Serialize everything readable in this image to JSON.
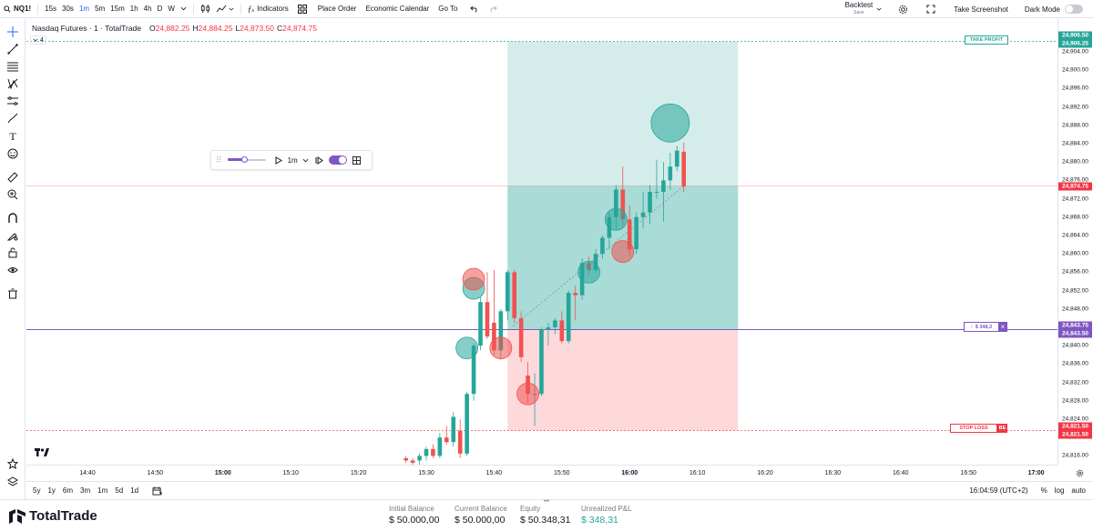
{
  "topbar": {
    "symbol": "NQ1!",
    "timeframes": [
      "15s",
      "30s",
      "1m",
      "5m",
      "15m",
      "1h",
      "4h",
      "D",
      "W"
    ],
    "active_timeframe": "1m",
    "indicators_label": "Indicators",
    "place_order_label": "Place Order",
    "economic_calendar_label": "Economic Calendar",
    "goto_label": "Go To",
    "backtest_label": "Backtest",
    "backtest_sub": "Save",
    "screenshot_label": "Take Screenshot",
    "dark_mode_label": "Dark Mode"
  },
  "legend": {
    "title": "Nasdaq Futures · 1 · TotalTrade",
    "o_label": "O",
    "o_value": "24,882.25",
    "h_label": "H",
    "h_value": "24,884.25",
    "l_label": "L",
    "l_value": "24,873.50",
    "c_label": "C",
    "c_value": "24,874.75",
    "indicator_count": "4"
  },
  "replay": {
    "speed": "1m"
  },
  "price_axis": {
    "labels": [
      "24,904.00",
      "24,900.00",
      "24,896.00",
      "24,892.00",
      "24,888.00",
      "24,884.00",
      "24,880.00",
      "24,876.00",
      "24,872.00",
      "24,868.00",
      "24,864.00",
      "24,860.00",
      "24,856.00",
      "24,852.00",
      "24,848.00",
      "24,844.00",
      "24,840.00",
      "24,836.00",
      "24,832.00",
      "24,828.00",
      "24,824.00",
      "24,820.00",
      "24,816.00"
    ],
    "tp_top": "24,906.50",
    "tp_bottom": "24,906.25",
    "last_price": "24,874.75",
    "entry_top": "24,843.75",
    "entry_bottom": "24,843.50",
    "sl_top": "24,821.50",
    "sl_bottom": "24,821.50"
  },
  "chart_tags": {
    "take_profit": "TAKE PROFIT",
    "position_value": "$ 348,3",
    "stop_loss": "STOP LOSS",
    "be": "BE"
  },
  "time_axis": {
    "labels": [
      "14:40",
      "14:50",
      "15:00",
      "15:10",
      "15:20",
      "15:30",
      "15:40",
      "15:50",
      "16:00",
      "16:10",
      "16:20",
      "16:30",
      "16:40",
      "16:50",
      "17:00"
    ],
    "bold": [
      "15:00",
      "16:00",
      "17:00"
    ]
  },
  "bottombar": {
    "ranges": [
      "5y",
      "1y",
      "6m",
      "3m",
      "1m",
      "5d",
      "1d"
    ],
    "clock": "16:04:59 (UTC+2)",
    "percent": "%",
    "log": "log",
    "auto": "auto"
  },
  "footer": {
    "brand": "TotalTrade",
    "initial_balance_label": "Initial Balance",
    "initial_balance": "$ 50.000,00",
    "current_balance_label": "Current Balance",
    "current_balance": "$ 50.000,00",
    "equity_label": "Equity",
    "equity": "$ 50.348,31",
    "unrealized_label": "Unrealized P&L",
    "unrealized": "$ 348,31"
  },
  "colors": {
    "up": "#26a69a",
    "down": "#ef5350",
    "target_zone": "#26a69a",
    "stop_zone": "#f7525f",
    "entry_line": "#7e57c2",
    "accent": "#2962ff"
  },
  "icons": {
    "left_toolbar": [
      "crosshair-icon",
      "trendline-icon",
      "fib-icon",
      "pattern-icon",
      "projection-icon",
      "brush-icon",
      "text-icon",
      "emoji-icon",
      "ruler-icon",
      "zoom-icon",
      "magnet-icon",
      "lock-draw-icon",
      "lock-icon",
      "eye-icon",
      "trash-icon",
      "star-icon",
      "layers-icon"
    ]
  },
  "candles": [
    {
      "t": "15:27",
      "o": 24815.5,
      "h": 24816.0,
      "l": 24814.5,
      "c": 24815.0
    },
    {
      "t": "15:28",
      "o": 24815.0,
      "h": 24815.5,
      "l": 24814.0,
      "c": 24814.5
    },
    {
      "t": "15:29",
      "o": 24815.0,
      "h": 24816.5,
      "l": 24814.0,
      "c": 24816.0
    },
    {
      "t": "15:30",
      "o": 24816.0,
      "h": 24818.0,
      "l": 24815.0,
      "c": 24817.5
    },
    {
      "t": "15:31",
      "o": 24817.5,
      "h": 24818.5,
      "l": 24815.5,
      "c": 24816.0
    },
    {
      "t": "15:32",
      "o": 24816.0,
      "h": 24821.0,
      "l": 24815.5,
      "c": 24820.0
    },
    {
      "t": "15:33",
      "o": 24820.0,
      "h": 24822.5,
      "l": 24818.5,
      "c": 24819.0
    },
    {
      "t": "15:34",
      "o": 24819.0,
      "h": 24825.5,
      "l": 24818.0,
      "c": 24824.5
    },
    {
      "t": "15:35",
      "o": 24821.5,
      "h": 24824.0,
      "l": 24815.5,
      "c": 24816.5
    },
    {
      "t": "15:36",
      "o": 24816.5,
      "h": 24830.0,
      "l": 24816.0,
      "c": 24829.5
    },
    {
      "t": "15:37",
      "o": 24829.5,
      "h": 24840.5,
      "l": 24828.0,
      "c": 24840.0
    },
    {
      "t": "15:38",
      "o": 24840.0,
      "h": 24850.5,
      "l": 24839.0,
      "c": 24849.5
    },
    {
      "t": "15:39",
      "o": 24849.5,
      "h": 24856.0,
      "l": 24841.5,
      "c": 24842.0
    },
    {
      "t": "15:40",
      "o": 24845.0,
      "h": 24856.5,
      "l": 24838.0,
      "c": 24839.0
    },
    {
      "t": "15:41",
      "o": 24839.0,
      "h": 24848.0,
      "l": 24837.0,
      "c": 24847.5
    },
    {
      "t": "15:42",
      "o": 24847.5,
      "h": 24856.5,
      "l": 24845.5,
      "c": 24856.0
    },
    {
      "t": "15:43",
      "o": 24856.0,
      "h": 24856.5,
      "l": 24845.0,
      "c": 24846.0
    },
    {
      "t": "15:44",
      "o": 24846.0,
      "h": 24847.5,
      "l": 24836.5,
      "c": 24837.5
    },
    {
      "t": "15:45",
      "o": 24833.5,
      "h": 24836.5,
      "l": 24827.5,
      "c": 24829.5
    },
    {
      "t": "15:46",
      "o": 24829.5,
      "h": 24834.0,
      "l": 24822.5,
      "c": 24829.5
    },
    {
      "t": "15:47",
      "o": 24829.5,
      "h": 24844.0,
      "l": 24829.0,
      "c": 24843.5
    },
    {
      "t": "15:48",
      "o": 24843.5,
      "h": 24845.0,
      "l": 24840.0,
      "c": 24844.0
    },
    {
      "t": "15:49",
      "o": 24844.0,
      "h": 24846.0,
      "l": 24842.5,
      "c": 24845.5
    },
    {
      "t": "15:50",
      "o": 24845.5,
      "h": 24847.5,
      "l": 24840.5,
      "c": 24841.0
    },
    {
      "t": "15:51",
      "o": 24841.0,
      "h": 24852.0,
      "l": 24840.5,
      "c": 24851.5
    },
    {
      "t": "15:52",
      "o": 24851.5,
      "h": 24853.0,
      "l": 24845.5,
      "c": 24851.0
    },
    {
      "t": "15:53",
      "o": 24851.0,
      "h": 24859.0,
      "l": 24850.0,
      "c": 24858.0
    },
    {
      "t": "15:54",
      "o": 24858.0,
      "h": 24859.5,
      "l": 24855.5,
      "c": 24856.5
    },
    {
      "t": "15:55",
      "o": 24856.5,
      "h": 24861.0,
      "l": 24856.0,
      "c": 24860.0
    },
    {
      "t": "15:56",
      "o": 24860.0,
      "h": 24864.0,
      "l": 24859.0,
      "c": 24863.5
    },
    {
      "t": "15:57",
      "o": 24863.5,
      "h": 24869.0,
      "l": 24861.0,
      "c": 24868.0
    },
    {
      "t": "15:58",
      "o": 24868.0,
      "h": 24875.0,
      "l": 24865.5,
      "c": 24874.0
    },
    {
      "t": "15:59",
      "o": 24874.0,
      "h": 24879.0,
      "l": 24866.0,
      "c": 24867.5
    },
    {
      "t": "16:00",
      "o": 24867.5,
      "h": 24870.5,
      "l": 24859.5,
      "c": 24861.0
    },
    {
      "t": "16:01",
      "o": 24861.0,
      "h": 24869.0,
      "l": 24860.0,
      "c": 24868.0
    },
    {
      "t": "16:02",
      "o": 24868.0,
      "h": 24873.5,
      "l": 24865.5,
      "c": 24869.0
    },
    {
      "t": "16:03",
      "o": 24869.0,
      "h": 24875.0,
      "l": 24866.5,
      "c": 24873.5
    },
    {
      "t": "16:04",
      "o": 24873.5,
      "h": 24880.5,
      "l": 24872.0,
      "c": 24873.5
    },
    {
      "t": "16:05",
      "o": 24873.5,
      "h": 24880.0,
      "l": 24867.0,
      "c": 24876.0
    },
    {
      "t": "16:06",
      "o": 24876.0,
      "h": 24882.0,
      "l": 24874.0,
      "c": 24879.0
    },
    {
      "t": "16:07",
      "o": 24879.0,
      "h": 24883.5,
      "l": 24878.0,
      "c": 24882.5
    },
    {
      "t": "16:08",
      "o": 24882.25,
      "h": 24884.25,
      "l": 24873.5,
      "c": 24874.75
    }
  ],
  "markers": [
    {
      "t": "15:36",
      "p": 24839.5,
      "side": "buy",
      "size": "m"
    },
    {
      "t": "15:37",
      "p": 24852.5,
      "side": "buy",
      "size": "m"
    },
    {
      "t": "15:37",
      "p": 24854.5,
      "side": "sell",
      "size": "m"
    },
    {
      "t": "15:41",
      "p": 24839.5,
      "side": "sell",
      "size": "m"
    },
    {
      "t": "15:45",
      "p": 24829.5,
      "side": "sell",
      "size": "m"
    },
    {
      "t": "15:54",
      "p": 24856.0,
      "side": "buy",
      "size": "m"
    },
    {
      "t": "15:58",
      "p": 24867.5,
      "side": "buy",
      "size": "m"
    },
    {
      "t": "15:59",
      "p": 24860.5,
      "side": "sell",
      "size": "m"
    },
    {
      "t": "16:06",
      "p": 24888.5,
      "side": "buy",
      "size": "l"
    }
  ],
  "position": {
    "start": "15:42",
    "end": "16:16",
    "entry": 24843.5,
    "take_profit": 24906.25,
    "stop_loss": 24821.5,
    "last": 24874.75
  }
}
